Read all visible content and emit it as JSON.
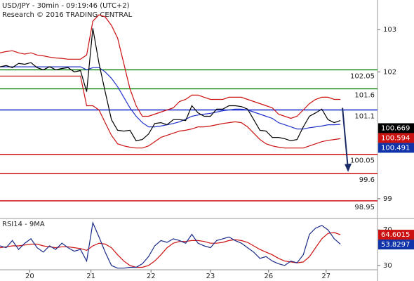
{
  "chart_data": [
    {
      "type": "line",
      "title": "USD/JPY - 30min - 09:19:46 (UTC+2)",
      "subtitle": "Research © 2016 TRADING CENTRAL",
      "x": [
        0,
        1,
        2,
        3,
        4,
        5,
        6,
        7,
        8,
        9,
        10,
        11,
        12,
        13,
        14,
        15,
        16,
        17,
        18,
        19,
        20,
        21,
        22,
        23,
        24,
        25,
        26,
        27,
        28,
        29,
        30,
        31,
        32,
        33,
        34,
        35,
        36,
        37,
        38,
        39,
        40,
        41,
        42,
        43,
        44,
        45,
        46,
        47,
        48,
        49,
        50,
        51,
        52,
        53,
        54,
        55
      ],
      "xlim": [
        0,
        61
      ],
      "ylim": [
        98.55,
        103.7
      ],
      "yticks": [
        99,
        102,
        103
      ],
      "series": [
        {
          "color": "#cc1111",
          "values": [
            102.45,
            102.48,
            102.5,
            102.45,
            102.42,
            102.45,
            102.4,
            102.38,
            102.35,
            102.33,
            102.32,
            102.3,
            102.3,
            102.3,
            102.4,
            103.2,
            103.35,
            103.3,
            103.1,
            102.8,
            102.2,
            101.6,
            101.2,
            100.95,
            100.95,
            101.0,
            101.05,
            101.1,
            101.15,
            101.3,
            101.35,
            101.45,
            101.45,
            101.4,
            101.35,
            101.35,
            101.35,
            101.4,
            101.4,
            101.4,
            101.35,
            101.3,
            101.25,
            101.2,
            101.15,
            101.0,
            100.95,
            100.9,
            100.95,
            101.1,
            101.25,
            101.35,
            101.4,
            101.4,
            101.35,
            101.35
          ]
        },
        {
          "color": "#cc1111",
          "values": [
            101.9,
            101.9,
            101.9,
            101.9,
            101.9,
            101.9,
            101.9,
            101.9,
            101.9,
            101.9,
            101.9,
            101.9,
            101.9,
            101.9,
            101.2,
            101.2,
            101.1,
            100.8,
            100.5,
            100.3,
            100.25,
            100.22,
            100.2,
            100.2,
            100.25,
            100.35,
            100.45,
            100.5,
            100.55,
            100.6,
            100.62,
            100.65,
            100.7,
            100.7,
            100.72,
            100.75,
            100.78,
            100.8,
            100.82,
            100.8,
            100.7,
            100.55,
            100.4,
            100.3,
            100.25,
            100.22,
            100.2,
            100.2,
            100.2,
            100.2,
            100.25,
            100.3,
            100.35,
            100.38,
            100.4,
            100.42
          ]
        },
        {
          "color": "#2233cc",
          "values": [
            102.12,
            102.12,
            102.12,
            102.12,
            102.12,
            102.12,
            102.12,
            102.12,
            102.12,
            102.12,
            102.12,
            102.12,
            102.12,
            102.12,
            102.05,
            102.1,
            102.1,
            102.0,
            101.85,
            101.65,
            101.4,
            101.15,
            100.95,
            100.8,
            100.7,
            100.7,
            100.72,
            100.75,
            100.78,
            100.82,
            100.88,
            100.95,
            100.98,
            101.0,
            101.02,
            101.05,
            101.08,
            101.1,
            101.12,
            101.12,
            101.1,
            101.05,
            101.0,
            100.95,
            100.9,
            100.8,
            100.75,
            100.7,
            100.65,
            100.65,
            100.68,
            100.7,
            100.72,
            100.75,
            100.75,
            100.76
          ]
        },
        {
          "color": "#000000",
          "values": [
            102.12,
            102.15,
            102.1,
            102.2,
            102.18,
            102.22,
            102.1,
            102.05,
            102.12,
            102.05,
            102.08,
            102.1,
            102.0,
            102.03,
            101.53,
            103.03,
            102.2,
            101.53,
            100.87,
            100.62,
            100.6,
            100.62,
            100.37,
            100.4,
            100.53,
            100.78,
            100.8,
            100.75,
            100.87,
            100.87,
            100.85,
            101.2,
            101.03,
            100.95,
            100.95,
            101.12,
            101.12,
            101.2,
            101.2,
            101.18,
            101.12,
            100.87,
            100.62,
            100.6,
            100.45,
            100.45,
            100.42,
            100.37,
            100.4,
            100.7,
            100.95,
            101.03,
            101.12,
            100.87,
            100.8,
            100.85
          ]
        }
      ],
      "levels": [
        {
          "value": 102.05,
          "color": "#118811"
        },
        {
          "value": 101.6,
          "color": "#118811"
        },
        {
          "value": 101.1,
          "color": "#1122cc"
        },
        {
          "value": 100.05,
          "color": "#cc1111"
        },
        {
          "value": 99.6,
          "color": "#cc1111"
        },
        {
          "value": 98.95,
          "color": "#cc1111"
        }
      ],
      "boxes": [
        {
          "value": 100.669,
          "color": "#000000"
        },
        {
          "value": 100.594,
          "color": "#cc1111"
        },
        {
          "value": 100.491,
          "color": "#1133aa"
        }
      ]
    },
    {
      "type": "line",
      "title": "RSI14 - 9MA",
      "x": [
        0,
        1,
        2,
        3,
        4,
        5,
        6,
        7,
        8,
        9,
        10,
        11,
        12,
        13,
        14,
        15,
        16,
        17,
        18,
        19,
        20,
        21,
        22,
        23,
        24,
        25,
        26,
        27,
        28,
        29,
        30,
        31,
        32,
        33,
        34,
        35,
        36,
        37,
        38,
        39,
        40,
        41,
        42,
        43,
        44,
        45,
        46,
        47,
        48,
        49,
        50,
        51,
        52,
        53,
        54,
        55
      ],
      "xlim": [
        0,
        61
      ],
      "ylim": [
        26,
        82
      ],
      "yticks": [
        30,
        70
      ],
      "xticks": [
        {
          "value": 4.8,
          "label": "20"
        },
        {
          "value": 14.7,
          "label": "21"
        },
        {
          "value": 24.4,
          "label": "22"
        },
        {
          "value": 34,
          "label": "23"
        },
        {
          "value": 43.4,
          "label": "26"
        },
        {
          "value": 52.7,
          "label": "27"
        }
      ],
      "series": [
        {
          "color": "#cc1111",
          "values": [
            50,
            51,
            52,
            52,
            53,
            54,
            54,
            52,
            51,
            50,
            51,
            51,
            50,
            49,
            47,
            52,
            55,
            54,
            50,
            42,
            35,
            30,
            28,
            28,
            30,
            35,
            42,
            50,
            55,
            57,
            57,
            58,
            58,
            57,
            55,
            55,
            56,
            58,
            59,
            58,
            56,
            52,
            48,
            45,
            42,
            38,
            35,
            34,
            33,
            34,
            40,
            50,
            60,
            66,
            67,
            64.6
          ]
        },
        {
          "color": "#1a2a88",
          "values": [
            52,
            50,
            58,
            48,
            55,
            60,
            50,
            45,
            52,
            48,
            55,
            50,
            46,
            48,
            35,
            78,
            62,
            45,
            30,
            27,
            27,
            28,
            28,
            32,
            40,
            52,
            58,
            56,
            60,
            58,
            55,
            65,
            55,
            52,
            50,
            58,
            60,
            62,
            58,
            55,
            50,
            45,
            38,
            40,
            35,
            32,
            30,
            35,
            33,
            42,
            65,
            72,
            75,
            70,
            60,
            54
          ]
        }
      ],
      "boxes": [
        {
          "value": 64.6015,
          "color": "#cc1111"
        },
        {
          "value": 53.8297,
          "color": "#1133aa"
        }
      ]
    }
  ]
}
